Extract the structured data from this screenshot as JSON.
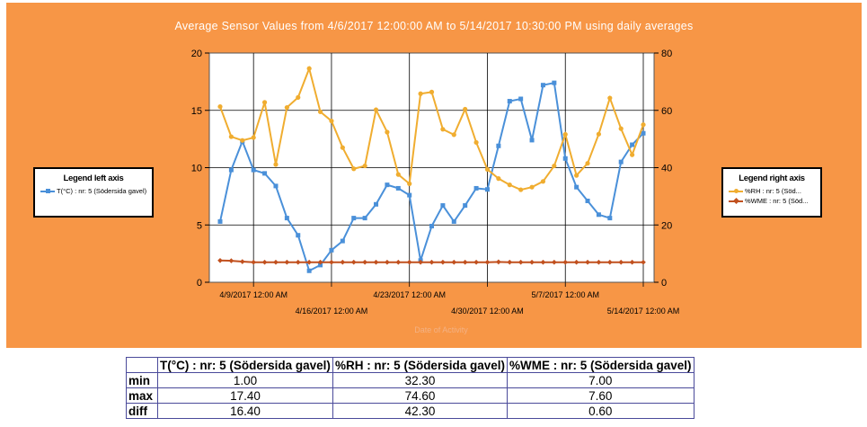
{
  "chart_data": {
    "type": "line",
    "title": "Average Sensor Values from 4/6/2017 12:00:00 AM to 5/14/2017 10:30:00 PM using daily averages",
    "xlabel": "Date of Activity",
    "x": [
      "2017-04-06",
      "2017-04-07",
      "2017-04-08",
      "2017-04-09",
      "2017-04-10",
      "2017-04-11",
      "2017-04-12",
      "2017-04-13",
      "2017-04-14",
      "2017-04-15",
      "2017-04-16",
      "2017-04-17",
      "2017-04-18",
      "2017-04-19",
      "2017-04-20",
      "2017-04-21",
      "2017-04-22",
      "2017-04-23",
      "2017-04-24",
      "2017-04-25",
      "2017-04-26",
      "2017-04-27",
      "2017-04-28",
      "2017-04-29",
      "2017-04-30",
      "2017-05-01",
      "2017-05-02",
      "2017-05-03",
      "2017-05-04",
      "2017-05-05",
      "2017-05-06",
      "2017-05-07",
      "2017-05-08",
      "2017-05-09",
      "2017-05-10",
      "2017-05-11",
      "2017-05-12",
      "2017-05-13",
      "2017-05-14"
    ],
    "x_tick_labels": {
      "top": [
        "4/9/2017 12:00 AM",
        "4/23/2017 12:00 AM",
        "5/7/2017 12:00 AM"
      ],
      "bottom": [
        "4/16/2017 12:00 AM",
        "4/30/2017 12:00 AM",
        "5/14/2017 12:00 AM"
      ]
    },
    "x_tick_dates": {
      "top": [
        "2017-04-09",
        "2017-04-23",
        "2017-05-07"
      ],
      "bottom": [
        "2017-04-16",
        "2017-04-30",
        "2017-05-14"
      ]
    },
    "left_axis": {
      "ylim": [
        0,
        20
      ],
      "ticks": [
        0,
        5,
        10,
        15,
        20
      ]
    },
    "right_axis": {
      "ylim": [
        0,
        80
      ],
      "ticks": [
        0,
        20,
        40,
        60,
        80
      ]
    },
    "series": [
      {
        "name": "T(°C) : nr: 5 (Södersida gavel)",
        "axis": "left",
        "color": "#4a90d9",
        "marker": "square",
        "values": [
          5.3,
          9.8,
          12.3,
          9.8,
          9.5,
          8.4,
          5.6,
          4.1,
          1.0,
          1.5,
          2.8,
          3.6,
          5.6,
          5.6,
          6.8,
          8.5,
          8.2,
          7.6,
          1.9,
          4.9,
          6.7,
          5.3,
          6.7,
          8.2,
          8.1,
          11.9,
          15.8,
          16.0,
          12.4,
          17.2,
          17.4,
          10.8,
          8.3,
          7.1,
          5.9,
          5.6,
          10.5,
          12.0,
          13.0
        ]
      },
      {
        "name": "%RH : nr: 5 (Söd...",
        "axis": "right",
        "color": "#f0ad30",
        "marker": "circle",
        "values": [
          61.3,
          50.8,
          49.5,
          50.5,
          62.8,
          41.1,
          61.0,
          64.5,
          74.6,
          59.5,
          56.3,
          47.0,
          39.6,
          40.6,
          60.2,
          52.4,
          37.6,
          34.4,
          65.8,
          66.4,
          53.4,
          51.5,
          60.4,
          48.8,
          39.4,
          36.2,
          34.0,
          32.3,
          33.2,
          35.2,
          40.6,
          51.6,
          37.3,
          41.5,
          51.7,
          64.3,
          53.6,
          44.5,
          55.0
        ]
      },
      {
        "name": "%WME : nr: 5 (Söd...",
        "axis": "right",
        "color": "#c1501e",
        "marker": "diamond",
        "values": [
          7.6,
          7.5,
          7.2,
          7.0,
          7.0,
          7.0,
          7.0,
          7.0,
          7.0,
          7.0,
          7.0,
          7.0,
          7.0,
          7.0,
          7.0,
          7.0,
          7.0,
          7.0,
          7.0,
          7.0,
          7.0,
          7.0,
          7.0,
          7.0,
          7.0,
          7.1,
          7.0,
          7.0,
          7.0,
          7.0,
          7.0,
          7.0,
          7.0,
          7.0,
          7.0,
          7.0,
          7.0,
          7.0,
          7.0
        ]
      }
    ],
    "grid": true
  },
  "legends": {
    "left": {
      "title": "Legend left axis",
      "entries": [
        {
          "label": "T(°C) : nr: 5 (Södersida gavel)",
          "color": "#4a90d9"
        }
      ]
    },
    "right": {
      "title": "Legend right axis",
      "entries": [
        {
          "label": "%RH : nr: 5 (Söd...",
          "color": "#f0ad30"
        },
        {
          "label": "%WME : nr: 5 (Söd...",
          "color": "#c1501e"
        }
      ]
    }
  },
  "stats_table": {
    "headers": [
      "",
      "T(°C) : nr: 5 (Södersida gavel)",
      "%RH : nr: 5 (Södersida gavel)",
      "%WME : nr: 5 (Södersida gavel)"
    ],
    "rows": [
      {
        "label": "min",
        "values": [
          "1.00",
          "32.30",
          "7.00"
        ]
      },
      {
        "label": "max",
        "values": [
          "17.40",
          "74.60",
          "7.60"
        ]
      },
      {
        "label": "diff",
        "values": [
          "16.40",
          "42.30",
          "0.60"
        ]
      }
    ]
  },
  "colors": {
    "background": "#f79646",
    "plot_background": "#ffffff",
    "title_text": "#ffffff",
    "x_title_text": "#f4b183"
  }
}
